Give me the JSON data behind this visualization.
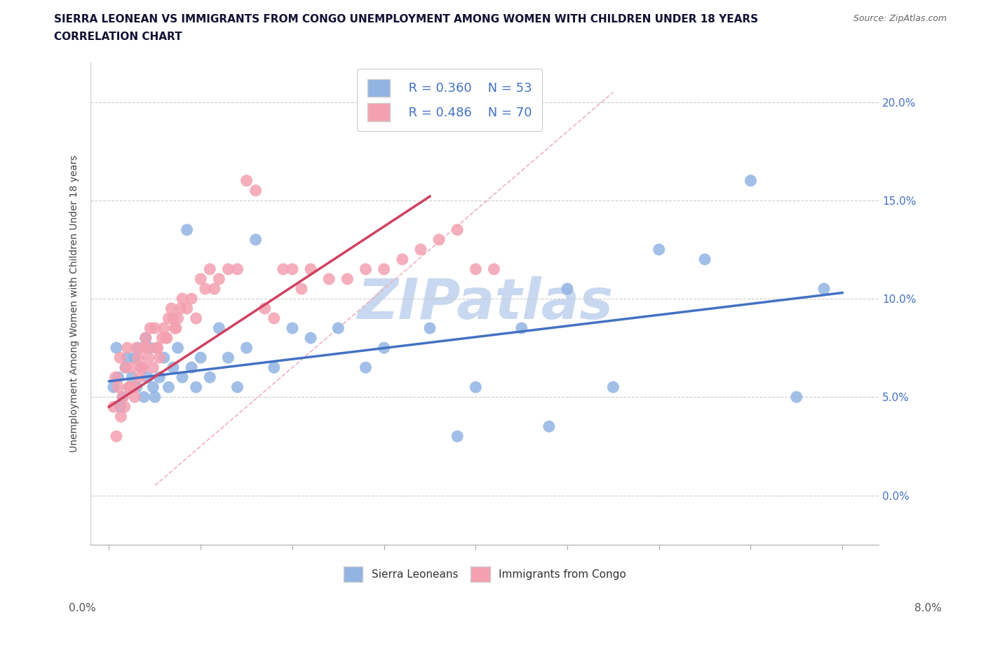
{
  "title_line1": "SIERRA LEONEAN VS IMMIGRANTS FROM CONGO UNEMPLOYMENT AMONG WOMEN WITH CHILDREN UNDER 18 YEARS",
  "title_line2": "CORRELATION CHART",
  "source": "Source: ZipAtlas.com",
  "xlim": [
    -0.2,
    8.4
  ],
  "ylim": [
    -2.5,
    22.0
  ],
  "yticks": [
    0.0,
    5.0,
    10.0,
    15.0,
    20.0
  ],
  "xtick_positions": [
    0.0,
    1.0,
    2.0,
    3.0,
    4.0,
    5.0,
    6.0,
    7.0,
    8.0
  ],
  "legend_r1": "R = 0.360",
  "legend_n1": "N = 53",
  "legend_r2": "R = 0.486",
  "legend_n2": "N = 70",
  "color_blue": "#92b4e3",
  "color_pink": "#f4a0b0",
  "color_blue_line": "#4472c4",
  "color_pink_line": "#d04060",
  "color_diag": "#f0b0c0",
  "watermark": "ZIPatlas",
  "watermark_color": "#c8d8f0",
  "series1_label": "Sierra Leoneans",
  "series2_label": "Immigrants from Congo",
  "blue_trend": [
    0.0,
    5.8,
    8.0,
    10.3
  ],
  "pink_trend": [
    0.0,
    4.5,
    3.5,
    15.2
  ],
  "diag_line": [
    0.5,
    0.5,
    5.5,
    20.5
  ],
  "blue_x": [
    0.05,
    0.08,
    0.1,
    0.12,
    0.15,
    0.18,
    0.2,
    0.22,
    0.25,
    0.28,
    0.3,
    0.32,
    0.35,
    0.38,
    0.4,
    0.42,
    0.45,
    0.48,
    0.5,
    0.55,
    0.6,
    0.65,
    0.7,
    0.75,
    0.8,
    0.85,
    0.9,
    0.95,
    1.0,
    1.1,
    1.2,
    1.3,
    1.4,
    1.5,
    1.6,
    1.8,
    2.0,
    2.2,
    2.5,
    2.8,
    3.0,
    3.5,
    4.0,
    4.5,
    5.0,
    5.5,
    6.0,
    6.5,
    7.0,
    7.5,
    7.8,
    3.8,
    4.8
  ],
  "blue_y": [
    5.5,
    7.5,
    6.0,
    4.5,
    5.0,
    6.5,
    7.0,
    5.5,
    6.0,
    7.0,
    5.5,
    7.5,
    6.5,
    5.0,
    8.0,
    6.0,
    7.5,
    5.5,
    5.0,
    6.0,
    7.0,
    5.5,
    6.5,
    7.5,
    6.0,
    13.5,
    6.5,
    5.5,
    7.0,
    6.0,
    8.5,
    7.0,
    5.5,
    7.5,
    13.0,
    6.5,
    8.5,
    8.0,
    8.5,
    6.5,
    7.5,
    8.5,
    5.5,
    8.5,
    10.5,
    5.5,
    12.5,
    12.0,
    16.0,
    5.0,
    10.5,
    3.0,
    3.5
  ],
  "pink_x": [
    0.05,
    0.07,
    0.1,
    0.12,
    0.15,
    0.18,
    0.2,
    0.22,
    0.25,
    0.28,
    0.3,
    0.32,
    0.35,
    0.38,
    0.4,
    0.42,
    0.45,
    0.48,
    0.5,
    0.52,
    0.55,
    0.58,
    0.6,
    0.62,
    0.65,
    0.68,
    0.7,
    0.72,
    0.75,
    0.78,
    0.8,
    0.85,
    0.9,
    0.95,
    1.0,
    1.05,
    1.1,
    1.15,
    1.2,
    1.3,
    1.4,
    1.5,
    1.6,
    1.7,
    1.8,
    1.9,
    2.0,
    2.1,
    2.2,
    2.4,
    2.6,
    2.8,
    3.0,
    3.2,
    3.4,
    3.6,
    3.8,
    4.0,
    4.2,
    0.08,
    0.13,
    0.17,
    0.23,
    0.27,
    0.33,
    0.37,
    0.43,
    0.53,
    0.63,
    0.73
  ],
  "pink_y": [
    4.5,
    6.0,
    5.5,
    7.0,
    5.0,
    6.5,
    7.5,
    5.5,
    6.5,
    5.0,
    7.5,
    7.0,
    6.5,
    7.5,
    8.0,
    7.5,
    8.5,
    6.5,
    8.5,
    7.5,
    7.0,
    8.0,
    8.5,
    8.0,
    9.0,
    9.5,
    9.0,
    8.5,
    9.0,
    9.5,
    10.0,
    9.5,
    10.0,
    9.0,
    11.0,
    10.5,
    11.5,
    10.5,
    11.0,
    11.5,
    11.5,
    16.0,
    15.5,
    9.5,
    9.0,
    11.5,
    11.5,
    10.5,
    11.5,
    11.0,
    11.0,
    11.5,
    11.5,
    12.0,
    12.5,
    13.0,
    13.5,
    11.5,
    11.5,
    3.0,
    4.0,
    4.5,
    5.5,
    5.5,
    6.0,
    6.5,
    7.0,
    7.5,
    8.0,
    8.5
  ]
}
